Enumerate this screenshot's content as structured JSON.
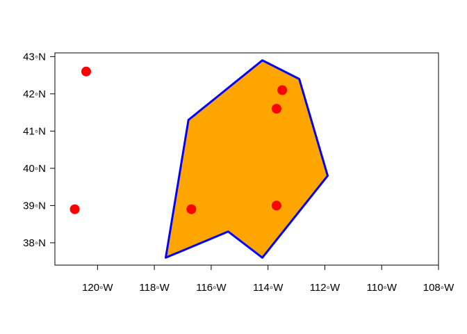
{
  "chart_data": {
    "type": "scatter",
    "title": "",
    "xlabel": "",
    "ylabel": "",
    "xlim": [
      -121.5,
      -108
    ],
    "ylim": [
      37.4,
      43.1
    ],
    "grid": false,
    "x_ticks": [
      {
        "value": -120,
        "label": "120◦W"
      },
      {
        "value": -118,
        "label": "118◦W"
      },
      {
        "value": -116,
        "label": "116◦W"
      },
      {
        "value": -114,
        "label": "114◦W"
      },
      {
        "value": -112,
        "label": "112◦W"
      },
      {
        "value": -110,
        "label": "110◦W"
      },
      {
        "value": -108,
        "label": "108◦W"
      }
    ],
    "y_ticks": [
      {
        "value": 38,
        "label": "38◦N"
      },
      {
        "value": 39,
        "label": "39◦N"
      },
      {
        "value": 40,
        "label": "40◦N"
      },
      {
        "value": 41,
        "label": "41◦N"
      },
      {
        "value": 42,
        "label": "42◦N"
      },
      {
        "value": 43,
        "label": "43◦N"
      }
    ],
    "polygon": {
      "fill": "#FFA500",
      "stroke": "#0000FF",
      "vertices": [
        [
          -117.6,
          37.6
        ],
        [
          -116.8,
          41.3
        ],
        [
          -114.2,
          42.9
        ],
        [
          -112.9,
          42.4
        ],
        [
          -111.9,
          39.8
        ],
        [
          -114.2,
          37.6
        ],
        [
          -115.4,
          38.3
        ]
      ]
    },
    "points": {
      "color": "#FF0000",
      "coords": [
        [
          -120.4,
          42.6
        ],
        [
          -120.8,
          38.9
        ],
        [
          -116.7,
          38.9
        ],
        [
          -113.7,
          41.6
        ],
        [
          -113.5,
          42.1
        ],
        [
          -113.7,
          39.0
        ]
      ]
    }
  }
}
